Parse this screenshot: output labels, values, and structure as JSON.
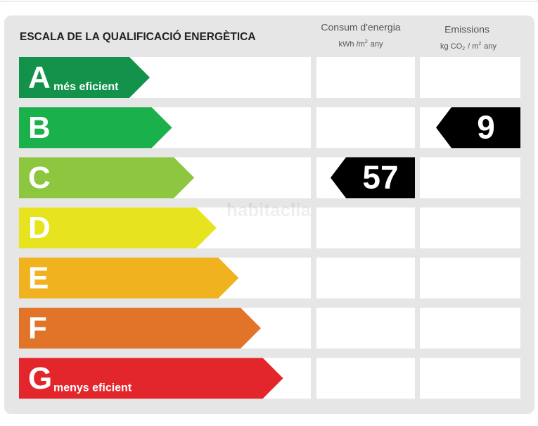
{
  "header": {
    "title": "ESCALA DE LA QUALIFICACIÓ ENERGÈTICA",
    "consumption": {
      "title": "Consum d'energia",
      "unit": "kWh /m",
      "unit_sup": "2",
      "unit_tail": "any"
    },
    "emissions": {
      "title": "Emissions",
      "unit": "kg CO",
      "unit_sub": "2",
      "unit_mid": "/ m",
      "unit_sup": "2",
      "unit_tail": "any"
    }
  },
  "grades": [
    {
      "letter": "A",
      "label": "més eficient",
      "color": "#12924a"
    },
    {
      "letter": "B",
      "label": null,
      "color": "#1ab04b"
    },
    {
      "letter": "C",
      "label": null,
      "color": "#8dc63f"
    },
    {
      "letter": "D",
      "label": null,
      "color": "#e7e31f"
    },
    {
      "letter": "E",
      "label": null,
      "color": "#f0b21f"
    },
    {
      "letter": "F",
      "label": null,
      "color": "#e2742a"
    },
    {
      "letter": "G",
      "label": "menys eficient",
      "color": "#e3262b"
    }
  ],
  "consumption": {
    "value": 57,
    "grade": "C"
  },
  "emissions": {
    "value": 9,
    "grade": "B"
  },
  "watermark": "habitaclia"
}
